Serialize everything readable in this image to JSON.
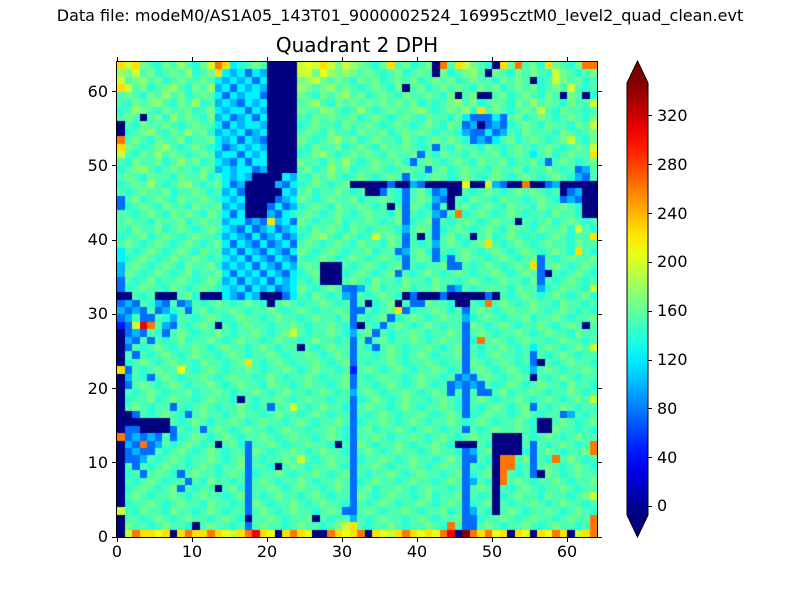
{
  "header": {
    "datafile_label": "Data file: modeM0/AS1A05_143T01_9000002524_16995cztM0_level2_quad_clean.evt"
  },
  "chart_data": {
    "type": "heatmap",
    "title": "Quadrant 2 DPH",
    "xlabel": "",
    "ylabel": "",
    "x_range": [
      0,
      64
    ],
    "y_range": [
      0,
      64
    ],
    "x_ticks": [
      0,
      10,
      20,
      30,
      40,
      50,
      60
    ],
    "y_ticks": [
      0,
      10,
      20,
      30,
      40,
      50,
      60
    ],
    "grid_on": false,
    "colormap": "jet",
    "colorbar": {
      "ticks": [
        0,
        40,
        80,
        120,
        160,
        200,
        240,
        280,
        320
      ],
      "vmin": -7,
      "vmax": 347,
      "extend": "both",
      "under_color": "#000080",
      "over_color": "#800000"
    },
    "grid": {
      "encoding": {
        "n": -7,
        "u": 45,
        "b": 75,
        "B": 100,
        "c": 122,
        ",": 140,
        ".": 152,
        ":": 165,
        ";": 178,
        "g": 196,
        "G": 208,
        "y": 225,
        "o": 262,
        "r": 308,
        "R": 345
      },
      "row_order": "top-to-bottom (y=63 first, y=0 last)",
      "rows": [
        "ygy:.,:.;.,:goyc,.:.nnnngGgyg:g;:.,:y.:,.:no.yg:.,ny:o.:,y:.,:oo",
        ";:g.:,.:.;,.:ycBcbcBnnnngg:G;:;:.:.,.:,.:.n:,.:;.n:.,:.:.,g:.,.:",
        "g.:;.:,.:..:.cBcBcbcnnnn:;g:.:.,:.:,.:.:,.:.:,.:..,:.:.n,.g:.:,.",
        "yg.:,.:;.,:.;BcbcBcBnnnn;:.:;.:.,.:.,:n.:,.:.:.,:.:,.:.:,.:.g.,.",
        ".:.,:.;.:,.:.cbcBccbnnnn:.,:.:;.:,.:.,:..:.,:n.:nn.:,.:.,:.n:.n,",
        ".,:.:;.,:.;,.BcBbcBcnnnn.:;.,:.:.:.:.:.:,.,.:;.:,.:.,:.;.:.,:..g",
        ",.;:.,:..:,.:cBccbcBnnnn:..;:.,.;.,.:..:;.,.:.;,y.:.,.:.g.,:..,.",
        ".:.n.:,;.:.,:BcbBcbcnnnn.,:.:..:,.:.,.:.,:..,:cbbbcb.:,.:.,.:.,:",
        "n.,:..:.,.:..cbcBccBnnnn,.:..,:..:.,.:.,.:.,:.bBnbBb,.:.,:..,:.g",
        "n,.:;.,:.;.:,BcBcbBcnnnn.:.,:..,:..:,.:.:.,..,BbbcbB.,:...,:.,.:",
        "o.:.,:..:,..:cBcbcBbnnnn:.,.:;.:,.:..,:.,.:.:.,bBbc.:,.:.,.:g.,:",
        "y:.,.:;.,.:.,cbBcBcBnnnn.,:..:,.:.,:..:.,.b.,:..,:.,.:.,.:.,.:.g",
        "g.,:.;.:.,.:.BccbcBcnnnn,.:;.,.:.:.,:..:b.,:..,:..:,.:.c.:,.:..y",
        ".,:..:,.;.:,.cBbcbccnnnn:..,:.;.,.:..:,b.:.,.:.,:..:,..:,b.:.,.:",
        ",.:;.,.:..,:.BcBccbBnnnn.:,.;.:,..:.,.:..b.:,.:..,:..:,..:.,.bB.",
        ".:.,:..,:..:,.cBcBnnnncB.,:.:.,.:.,.:.b.,.:.,.:.,.:.,.:.,.:.,Bb.",
        ",.:.;.,.:;.,.:cbBnnnnBbc,.:.,.:nnnnnbnnBbnnnnnGnngBbnnonnbBnnnnn",
        ".,.:..:,..:.,.BcbnnnnncB.:,..:.,.nnb.,b.:,bBnn.,.:.,.:.:.,.nbBnn",
        "b.:,.:.,:..:.,cBcnnnnbBc:.,.:..:,..:.,b.:.Bbn.,:..,:..,.:.,bBbnn",
        "b,.:.,:..,:..:BcBnnnbcbB,.:.,:..:.,.n.b:.,b.n.:,.:.,:..,:..:.,nn",
        "..,.:.,:.:.,:.cbcnnnBbc,.:.,.:.,.:..,:b.,.Bb.o,.:.,.:.,..,:..,nn",
        ".:..,:..:,.:..BccbBbyBcb:.,..:,..:.,.:b,.:b.,.:.,.:..n.,.:,.:.,.",
        ".,:..:,.:.,.:.cBbcbBcbBc.,:.:.,:.,.:.,B.:.b,.:.,.:.,:..,:..:,g.,",
        ",..:,.:.,.:..,BcBbcbBcbB,.:;.,:.,.g.:.b.n.b.:,.n.:,.:.,.,.:.,..y",
        ".:.,.:.,.:.,.:cbcBbcbBcb.:.,.:.,:..,:.b.,.B.:.,.:y.,.:.,.:..,:..",
        "c.,.:.,.:.,:..BcbcBbcBbc:.,.:.,..:,..bB.:,b.,.:.,.:.,.:.,.:.,y.,",
        "c,.:.,.:..:.,.cBcbcBbcBb.,.:.,.:.,.:.,b.:.b,b.:..,.:.,.:b.,.:..:",
        "B.:.,.:.,:..:,BcBcbcBbcB.:.nnn.,.:.,.:b.,..:bb.,.:.,.:.yb.:.,.:.",
        "B:.,.:.,.:,..:cbcBcbcBbc,.:nnn,.:.,.:b.,.:.,.:.,..:.,.:.bn.,.:.,",
        "b.,.:,..:.,.:.BcbcBcbcBc.,.nnn.:.,:..,:..,:..,.:.,.:..,:b.,.:.,.",
        "b,.:..,:.,.:.,cBcbcBcbBc:.,.:.bbB.:,..:,..:.bB.,.:..,:..B,.:..,g",
        "nn.,.nnn.:,nnncBbcBnnnbc.,:.,.Bb.,.:.,nbnnnbnnnnnbn.,.:.,.:.,.:,",
        "bBb.,Bb.bB.,.:.,.:.,n.:.,..:.,.b.n,.:n.bb:..,nn.,o.:.,.:..,:..,.",
        "BbBb.bB,.b.:,..:.,..:.,.:.,..:.bb.,.:yb,..:.,.b.:.,.:..:.,.:.,.,",
        "bB.bb.,B..,.:.,.:..,.:..,.:..,:b.,.:b,.:.,.:..B,.:.,..:,..:.,..:",
        "ubgro.Bb.,.:.n.,.:..,..:.,..:.,bn.,b.:.,.:.,..b:.,.:.,..:.,.:.n.",
        "nbBb.,b.:.,..:.,..:.,.:g.,..:.,B.:b.,..:.,..:.b.:.,..:.,.:..,:..",
        "nBb.b.,.:,..:.,.:..,.:..,.:..,.b.b.:,..:.,.:..b,o.:.,.:..,.:..,.",
        "nb.,.:.,..:.,.:..,.:.,..n.,.:..b.,b.:.,..:.,.:b.,..:.,.c.:.,.:.g",
        "n.b.,.:.,.:..,.:.,..:.,..:.,.:.b..,.:.,.:.,..:b.,.:..,.b.,.:.,..",
        "n,.:.,.:..,:..,.:y.,.:.,..:.,.:b.,..:.,..:.,..b:.,.:.,.bn.,.:..,",
        "yb.,.:..G.,.:.,..:.,..:.,.:..,.u.:.,.:.,..:.,.b.:.,.:.,B.:.,..:.",
        "nB.,b.:.,..:.,.:..,.:.,..:.,..:b.,.:..,.:..,.bBb.:.,.:.n.,.:.,..",
        "nb.:.,.:.,..:.,.:..,:..,.:..,.:b..,.:.,.:.,.bBbBb.,.:.,.:..,:..,",
        "n.,.:.,..:,..:.,..:.,.:..,.:.,.B.:.,..:.,.:.b.b.bb.:,..:.,..:.,.",
        "n,..:,.:..,.:..,n.,..:.,.:..,..b,.:.,.:..,.:.,b.:.,..:.,.:.,.:.g",
        "n.:.,..b.,.:.,..:.,.b..g.,.:..,b.:..,.:.,..:.,b.,.:.,.:b.,.:.,..",
        "nnb.,.:.,b.:..,.:..,.:..,.:.,..b.,.:.,..:.,.:.b,.:..,.:.,..bB.,.",
        "nnnnnnn.,.:.,..:.,.:..,.:.,..:.b,..:.,.:.,..:.,.:.,..:.,nn.:.,.:",
        "nbbnnnnb.,.b.:.,.:..,.:..,..:.,b.:,..:.,.:.,..b.,.:..:.,nn:..,.,",
        "obBbBb.b,.:.,.:.,..:.,.:..,.:.,b..:.,..:.,.:.,.:..nnnn.,.:.,.:..",
        "nBbobB.,.:.,.n.:,b..:.,..:..,n.b:.,..:.,..:.,nnn.,nnnn.b.,.:.,.o",
        "nbBbb.,.:.,.:.,..b:.,..:.,.:..,b.:.,.:..,.:..,bB.:nnnn,b.:.,..:o",
        "nbbB.,.:.,..:.,.:b.,..:.g.,.:..b,..:.,.:..,.:.bb.,noo.:b.,o.:.,.",
        "n.b.,.:..,.:.,..:b..,n.:.,..:.,b..:.,..:.,.:..b.,.noo,.b.:.,.:.,",
        "n,.b.:.,b.:..,.:.b,..:.,..:.,.:b.,..:.,.:..,.:b,.:no.,.bn:.,.:..",
        "n.,.:.,..b.,:..,.b.:.,..:.,..:.b,.:..,.:..,.:.bB.,no.:.,..:.,..:",
        "n,.:.,.:b.,..n.:,b..:.,.:..,.:.b.:,..:.,.:..,.b.:.n.,.:.,..:.,..",
        "n.:.,..:.,.:..,.:b.,.:..,.:.,..b:.,.:..,.:,..:b.,.n,.:..,:..,.:g",
        "n,..:.,.:..,:..,.b:.,..:.,.:..,b.,.:.,..:.,.:.b,.:n.,..:.,.:..,.",
        "g.,:..,:..,.:.,..b.:.,.:..,.:.bb.:.,..:.,..:,.bB.,n.:.,..:.,.:.,",
        "n..,.:.,.:..,.:.,n..:.,..:n.,..B.,.:..,.:.,..:bb,..:.,.:..,.:..o",
        "n:..,.:..,n.:..,.b.:..,.:..,.:gy.,..:.,..:.,o.bb.:.,..:.,.:..,.o",
        "ngoyyGynyoyyoyGgyoryGnyoyGnnoyGyonyGgyoyGyGornRoyoGynyGnyGoyngyo"
      ]
    }
  }
}
